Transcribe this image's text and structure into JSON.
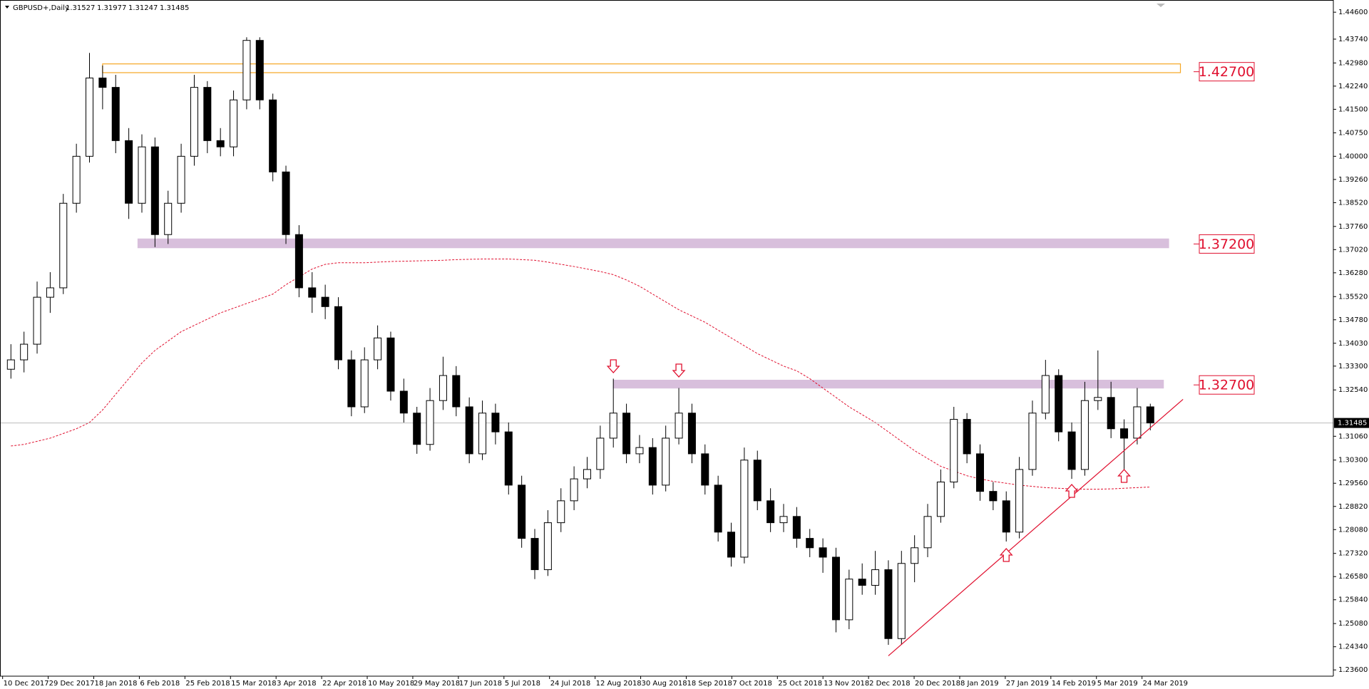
{
  "chart_data": {
    "type": "candlestick",
    "header": {
      "symbol": "GBPUSD+,Daily",
      "ohlc": [
        1.31527,
        1.31977,
        1.31247,
        1.31485
      ]
    },
    "ylim": [
      1.234,
      1.4499
    ],
    "yticks": [
      {
        "value": 1.446,
        "label": "1.44600"
      },
      {
        "value": 1.4374,
        "label": "1.43740"
      },
      {
        "value": 1.4298,
        "label": "1.42980"
      },
      {
        "value": 1.4224,
        "label": "1.42240"
      },
      {
        "value": 1.415,
        "label": "1.41500"
      },
      {
        "value": 1.4075,
        "label": "1.40750"
      },
      {
        "value": 1.4,
        "label": "1.40000"
      },
      {
        "value": 1.3926,
        "label": "1.39260"
      },
      {
        "value": 1.3852,
        "label": "1.38520"
      },
      {
        "value": 1.3776,
        "label": "1.37760"
      },
      {
        "value": 1.3702,
        "label": "1.37020"
      },
      {
        "value": 1.3628,
        "label": "1.36280"
      },
      {
        "value": 1.3552,
        "label": "1.35520"
      },
      {
        "value": 1.3478,
        "label": "1.34780"
      },
      {
        "value": 1.3403,
        "label": "1.34030"
      },
      {
        "value": 1.333,
        "label": "1.33300"
      },
      {
        "value": 1.3254,
        "label": "1.32540"
      },
      {
        "value": 1.3106,
        "label": "1.31060"
      },
      {
        "value": 1.303,
        "label": "1.30300"
      },
      {
        "value": 1.2956,
        "label": "1.29560"
      },
      {
        "value": 1.2882,
        "label": "1.28820"
      },
      {
        "value": 1.2808,
        "label": "1.28080"
      },
      {
        "value": 1.2732,
        "label": "1.27320"
      },
      {
        "value": 1.2658,
        "label": "1.26580"
      },
      {
        "value": 1.2584,
        "label": "1.25840"
      },
      {
        "value": 1.2508,
        "label": "1.25080"
      },
      {
        "value": 1.2434,
        "label": "1.24340"
      },
      {
        "value": 1.236,
        "label": "1.23600"
      }
    ],
    "xticklabels": [
      "10 Dec 2017",
      "29 Dec 2017",
      "18 Jan 2018",
      "6 Feb 2018",
      "25 Feb 2018",
      "15 Mar 2018",
      "3 Apr 2018",
      "22 Apr 2018",
      "10 May 2018",
      "29 May 2018",
      "17 Jun 2018",
      "5 Jul 2018",
      "24 Jul 2018",
      "12 Aug 2018",
      "30 Aug 2018",
      "18 Sep 2018",
      "7 Oct 2018",
      "25 Oct 2018",
      "13 Nov 2018",
      "2 Dec 2018",
      "20 Dec 2018",
      "8 Jan 2019",
      "27 Jan 2019",
      "14 Feb 2019",
      "5 Mar 2019",
      "24 Mar 2019"
    ],
    "candles": [
      [
        1.332,
        1.34,
        1.329,
        1.335
      ],
      [
        1.335,
        1.344,
        1.331,
        1.34
      ],
      [
        1.34,
        1.36,
        1.337,
        1.355
      ],
      [
        1.355,
        1.363,
        1.35,
        1.358
      ],
      [
        1.358,
        1.388,
        1.356,
        1.385
      ],
      [
        1.385,
        1.404,
        1.382,
        1.4
      ],
      [
        1.4,
        1.433,
        1.398,
        1.425
      ],
      [
        1.425,
        1.429,
        1.415,
        1.422
      ],
      [
        1.422,
        1.426,
        1.401,
        1.405
      ],
      [
        1.405,
        1.409,
        1.38,
        1.385
      ],
      [
        1.385,
        1.407,
        1.382,
        1.403
      ],
      [
        1.403,
        1.406,
        1.371,
        1.375
      ],
      [
        1.375,
        1.389,
        1.372,
        1.385
      ],
      [
        1.385,
        1.404,
        1.382,
        1.4
      ],
      [
        1.4,
        1.426,
        1.397,
        1.422
      ],
      [
        1.422,
        1.424,
        1.401,
        1.405
      ],
      [
        1.405,
        1.409,
        1.4,
        1.403
      ],
      [
        1.403,
        1.421,
        1.4,
        1.418
      ],
      [
        1.418,
        1.438,
        1.415,
        1.437
      ],
      [
        1.437,
        1.438,
        1.415,
        1.418
      ],
      [
        1.418,
        1.42,
        1.392,
        1.395
      ],
      [
        1.395,
        1.397,
        1.372,
        1.375
      ],
      [
        1.375,
        1.378,
        1.355,
        1.358
      ],
      [
        1.358,
        1.363,
        1.35,
        1.355
      ],
      [
        1.355,
        1.359,
        1.348,
        1.352
      ],
      [
        1.352,
        1.355,
        1.332,
        1.335
      ],
      [
        1.335,
        1.338,
        1.317,
        1.32
      ],
      [
        1.32,
        1.339,
        1.318,
        1.335
      ],
      [
        1.335,
        1.346,
        1.332,
        1.342
      ],
      [
        1.342,
        1.344,
        1.322,
        1.325
      ],
      [
        1.325,
        1.329,
        1.315,
        1.318
      ],
      [
        1.318,
        1.32,
        1.305,
        1.308
      ],
      [
        1.308,
        1.326,
        1.306,
        1.322
      ],
      [
        1.322,
        1.336,
        1.319,
        1.33
      ],
      [
        1.33,
        1.333,
        1.317,
        1.32
      ],
      [
        1.32,
        1.323,
        1.302,
        1.305
      ],
      [
        1.305,
        1.322,
        1.303,
        1.318
      ],
      [
        1.318,
        1.321,
        1.308,
        1.312
      ],
      [
        1.312,
        1.315,
        1.292,
        1.295
      ],
      [
        1.295,
        1.298,
        1.275,
        1.278
      ],
      [
        1.278,
        1.281,
        1.265,
        1.268
      ],
      [
        1.268,
        1.287,
        1.266,
        1.283
      ],
      [
        1.283,
        1.294,
        1.28,
        1.29
      ],
      [
        1.29,
        1.301,
        1.287,
        1.297
      ],
      [
        1.297,
        1.304,
        1.294,
        1.3
      ],
      [
        1.3,
        1.314,
        1.297,
        1.31
      ],
      [
        1.31,
        1.329,
        1.307,
        1.318
      ],
      [
        1.318,
        1.321,
        1.302,
        1.305
      ],
      [
        1.305,
        1.311,
        1.302,
        1.307
      ],
      [
        1.307,
        1.31,
        1.292,
        1.295
      ],
      [
        1.295,
        1.314,
        1.293,
        1.31
      ],
      [
        1.31,
        1.326,
        1.308,
        1.318
      ],
      [
        1.318,
        1.321,
        1.302,
        1.305
      ],
      [
        1.305,
        1.308,
        1.292,
        1.295
      ],
      [
        1.295,
        1.298,
        1.277,
        1.28
      ],
      [
        1.28,
        1.283,
        1.269,
        1.272
      ],
      [
        1.272,
        1.307,
        1.27,
        1.303
      ],
      [
        1.303,
        1.306,
        1.287,
        1.29
      ],
      [
        1.29,
        1.294,
        1.28,
        1.283
      ],
      [
        1.283,
        1.289,
        1.28,
        1.285
      ],
      [
        1.285,
        1.288,
        1.275,
        1.278
      ],
      [
        1.278,
        1.281,
        1.272,
        1.275
      ],
      [
        1.275,
        1.278,
        1.267,
        1.272
      ],
      [
        1.272,
        1.275,
        1.248,
        1.252
      ],
      [
        1.252,
        1.268,
        1.249,
        1.265
      ],
      [
        1.265,
        1.27,
        1.26,
        1.263
      ],
      [
        1.263,
        1.274,
        1.26,
        1.268
      ],
      [
        1.268,
        1.271,
        1.244,
        1.246
      ],
      [
        1.246,
        1.274,
        1.244,
        1.27
      ],
      [
        1.27,
        1.279,
        1.264,
        1.275
      ],
      [
        1.275,
        1.289,
        1.272,
        1.285
      ],
      [
        1.285,
        1.3,
        1.283,
        1.296
      ],
      [
        1.296,
        1.32,
        1.294,
        1.316
      ],
      [
        1.316,
        1.318,
        1.302,
        1.305
      ],
      [
        1.305,
        1.308,
        1.29,
        1.293
      ],
      [
        1.293,
        1.296,
        1.287,
        1.29
      ],
      [
        1.29,
        1.293,
        1.277,
        1.28
      ],
      [
        1.28,
        1.304,
        1.278,
        1.3
      ],
      [
        1.3,
        1.322,
        1.298,
        1.318
      ],
      [
        1.318,
        1.335,
        1.316,
        1.33
      ],
      [
        1.33,
        1.332,
        1.309,
        1.312
      ],
      [
        1.312,
        1.315,
        1.297,
        1.3
      ],
      [
        1.3,
        1.328,
        1.298,
        1.322
      ],
      [
        1.322,
        1.338,
        1.319,
        1.323
      ],
      [
        1.323,
        1.328,
        1.31,
        1.313
      ],
      [
        1.313,
        1.316,
        1.3,
        1.31
      ],
      [
        1.31,
        1.326,
        1.308,
        1.32
      ],
      [
        1.32,
        1.321,
        1.3125,
        1.31485
      ]
    ],
    "ma": {
      "color": "#e0102f",
      "values": [
        1.3075,
        1.308,
        1.309,
        1.31,
        1.3115,
        1.313,
        1.315,
        1.319,
        1.324,
        1.329,
        1.334,
        1.338,
        1.341,
        1.344,
        1.346,
        1.348,
        1.35,
        1.3515,
        1.353,
        1.3545,
        1.356,
        1.359,
        1.3615,
        1.364,
        1.3655,
        1.366,
        1.366,
        1.366,
        1.3662,
        1.3664,
        1.3665,
        1.3666,
        1.3667,
        1.3668,
        1.367,
        1.3671,
        1.3672,
        1.3672,
        1.3672,
        1.367,
        1.3668,
        1.3662,
        1.3655,
        1.3648,
        1.364,
        1.3632,
        1.3622,
        1.3605,
        1.3585,
        1.356,
        1.3535,
        1.351,
        1.349,
        1.347,
        1.3445,
        1.342,
        1.3395,
        1.337,
        1.335,
        1.333,
        1.3315,
        1.329,
        1.326,
        1.323,
        1.32,
        1.3175,
        1.315,
        1.312,
        1.309,
        1.306,
        1.3035,
        1.301,
        1.2995,
        1.298,
        1.297,
        1.2962,
        1.2956,
        1.295,
        1.2946,
        1.2942,
        1.294,
        1.2938,
        1.2937,
        1.2937,
        1.2938,
        1.294,
        1.2942,
        1.2944
      ]
    },
    "trendline": {
      "color": "#e0102f",
      "x": [
        67,
        89.5
      ],
      "y": [
        1.2405,
        1.3224
      ]
    },
    "zones": [
      {
        "range": [
          1.4267,
          1.4295
        ],
        "color": "#f5a623",
        "filled": false
      },
      {
        "range": [
          1.3708,
          1.3736
        ],
        "color": "#d8bfdc",
        "filled": true
      },
      {
        "range": [
          1.326,
          1.3285
        ],
        "color": "#d8bfdc",
        "filled": true
      }
    ],
    "levels": [
      {
        "value": 1.427,
        "label": "1.42700"
      },
      {
        "value": 1.372,
        "label": "1.37200"
      },
      {
        "value": 1.327,
        "label": "1.32700"
      }
    ]
  }
}
